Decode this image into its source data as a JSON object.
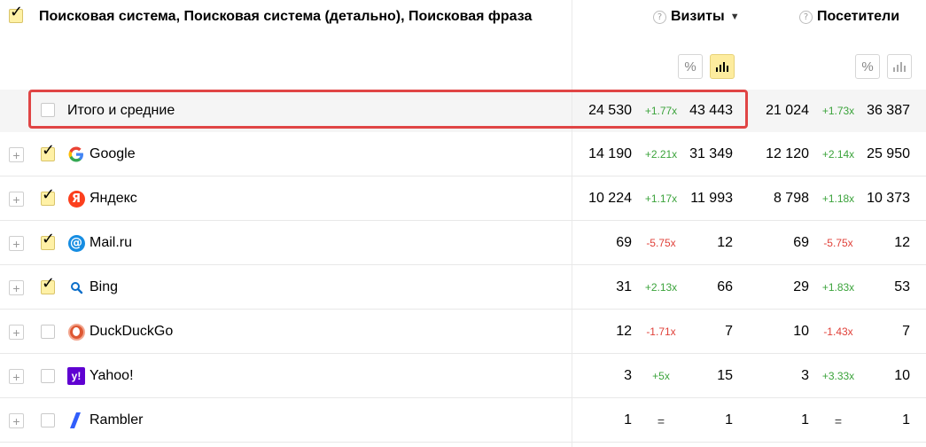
{
  "header": {
    "dimensions_title": "Поисковая система, Поисковая система (детально), Поисковая фраза",
    "col_visits": "Визиты",
    "col_visitors": "Посетители",
    "sort_indicator": "▼",
    "help_icon_glyph": "?",
    "percent_btn": "%",
    "bars_btn": "bar-chart-icon"
  },
  "total_row": {
    "label": "Итого и средние",
    "visits": "24 530",
    "visits_delta": "+1.77x",
    "visits_compare": "43 443",
    "visitors": "21 024",
    "visitors_delta": "+1.73x",
    "visitors_compare": "36 387"
  },
  "rows": [
    {
      "label": "Google",
      "checked": true,
      "icon": "google-logo-icon",
      "visits": "14 190",
      "visits_delta": "+2.21x",
      "visits_compare": "31 349",
      "visitors": "12 120",
      "visitors_delta": "+2.14x",
      "visitors_compare": "25 950"
    },
    {
      "label": "Яндекс",
      "checked": true,
      "icon": "yandex-logo-icon",
      "visits": "10 224",
      "visits_delta": "+1.17x",
      "visits_compare": "11 993",
      "visitors": "8 798",
      "visitors_delta": "+1.18x",
      "visitors_compare": "10 373"
    },
    {
      "label": "Mail.ru",
      "checked": true,
      "icon": "mailru-logo-icon",
      "visits": "69",
      "visits_delta": "-5.75x",
      "visits_compare": "12",
      "visitors": "69",
      "visitors_delta": "-5.75x",
      "visitors_compare": "12"
    },
    {
      "label": "Bing",
      "checked": true,
      "icon": "bing-logo-icon",
      "visits": "31",
      "visits_delta": "+2.13x",
      "visits_compare": "66",
      "visitors": "29",
      "visitors_delta": "+1.83x",
      "visitors_compare": "53"
    },
    {
      "label": "DuckDuckGo",
      "checked": false,
      "icon": "duckduckgo-logo-icon",
      "visits": "12",
      "visits_delta": "-1.71x",
      "visits_compare": "7",
      "visitors": "10",
      "visitors_delta": "-1.43x",
      "visitors_compare": "7"
    },
    {
      "label": "Yahoo!",
      "checked": false,
      "icon": "yahoo-logo-icon",
      "visits": "3",
      "visits_delta": "+5x",
      "visits_compare": "15",
      "visitors": "3",
      "visitors_delta": "+3.33x",
      "visitors_compare": "10"
    },
    {
      "label": "Rambler",
      "checked": false,
      "icon": "rambler-logo-icon",
      "visits": "1",
      "visits_delta": "=",
      "visits_compare": "1",
      "visitors": "1",
      "visitors_delta": "=",
      "visitors_compare": "1"
    }
  ],
  "colors": {
    "positive": "#3ba33b",
    "negative": "#e0413a",
    "highlight": "#e04545",
    "checkbox_on": "#fff1a6",
    "active_btn": "#fdec9e"
  }
}
